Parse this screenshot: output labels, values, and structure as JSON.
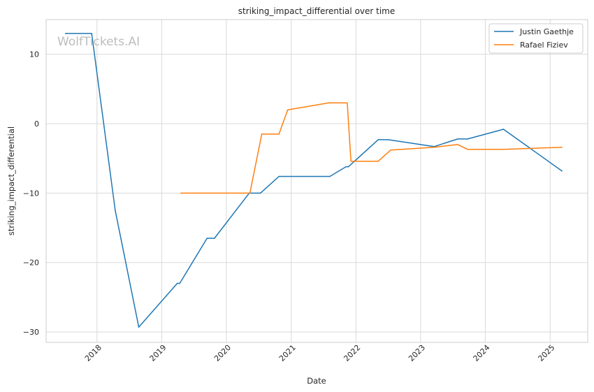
{
  "chart_data": {
    "type": "line",
    "title": "striking_impact_differential over time",
    "xlabel": "Date",
    "ylabel": "striking_impact_differential",
    "watermark": "WolfTickets.AI",
    "x_tick_labels": [
      "2018",
      "2019",
      "2020",
      "2021",
      "2022",
      "2023",
      "2024",
      "2025"
    ],
    "y_tick_labels": [
      "−30",
      "−20",
      "−10",
      "0",
      "10"
    ],
    "xlim": [
      "2017-03-20",
      "2025-08-01"
    ],
    "ylim": [
      -31.5,
      15
    ],
    "x_ticks": [
      "2018-01-01",
      "2019-01-01",
      "2020-01-01",
      "2021-01-01",
      "2022-01-01",
      "2023-01-01",
      "2024-01-01",
      "2025-01-01"
    ],
    "y_ticks": [
      -30,
      -20,
      -10,
      0,
      10
    ],
    "grid": true,
    "legend_position": "top-right",
    "series": [
      {
        "name": "Justin Gaethje",
        "color": "#1f77b4",
        "points": [
          [
            "2017-07-07",
            13
          ],
          [
            "2017-12-02",
            13
          ],
          [
            "2018-04-14",
            -12.5
          ],
          [
            "2018-08-25",
            -29.3
          ],
          [
            "2019-03-30",
            -23
          ],
          [
            "2019-04-13",
            -23
          ],
          [
            "2019-09-14",
            -16.5
          ],
          [
            "2019-10-26",
            -16.5
          ],
          [
            "2020-05-09",
            -10
          ],
          [
            "2020-07-11",
            -10
          ],
          [
            "2020-10-24",
            -7.6
          ],
          [
            "2021-08-07",
            -7.6
          ],
          [
            "2021-11-06",
            -6.2
          ],
          [
            "2021-11-20",
            -6.2
          ],
          [
            "2022-05-07",
            -2.3
          ],
          [
            "2022-07-02",
            -2.3
          ],
          [
            "2023-03-18",
            -3.3
          ],
          [
            "2023-07-29",
            -2.2
          ],
          [
            "2023-09-23",
            -2.2
          ],
          [
            "2024-04-13",
            -0.8
          ],
          [
            "2025-03-08",
            -6.8
          ]
        ]
      },
      {
        "name": "Rafael Fiziev",
        "color": "#ff7f0e",
        "points": [
          [
            "2019-04-20",
            -10
          ],
          [
            "2020-05-13",
            -10
          ],
          [
            "2020-07-19",
            -1.5
          ],
          [
            "2020-10-24",
            -1.5
          ],
          [
            "2020-12-12",
            2
          ],
          [
            "2021-07-31",
            3
          ],
          [
            "2021-11-13",
            3
          ],
          [
            "2021-12-04",
            -5.4
          ],
          [
            "2022-05-07",
            -5.4
          ],
          [
            "2022-07-16",
            -3.8
          ],
          [
            "2023-03-18",
            -3.4
          ],
          [
            "2023-07-29",
            -3
          ],
          [
            "2023-09-23",
            -3.7
          ],
          [
            "2024-04-13",
            -3.7
          ],
          [
            "2025-03-08",
            -3.4
          ]
        ]
      }
    ]
  }
}
